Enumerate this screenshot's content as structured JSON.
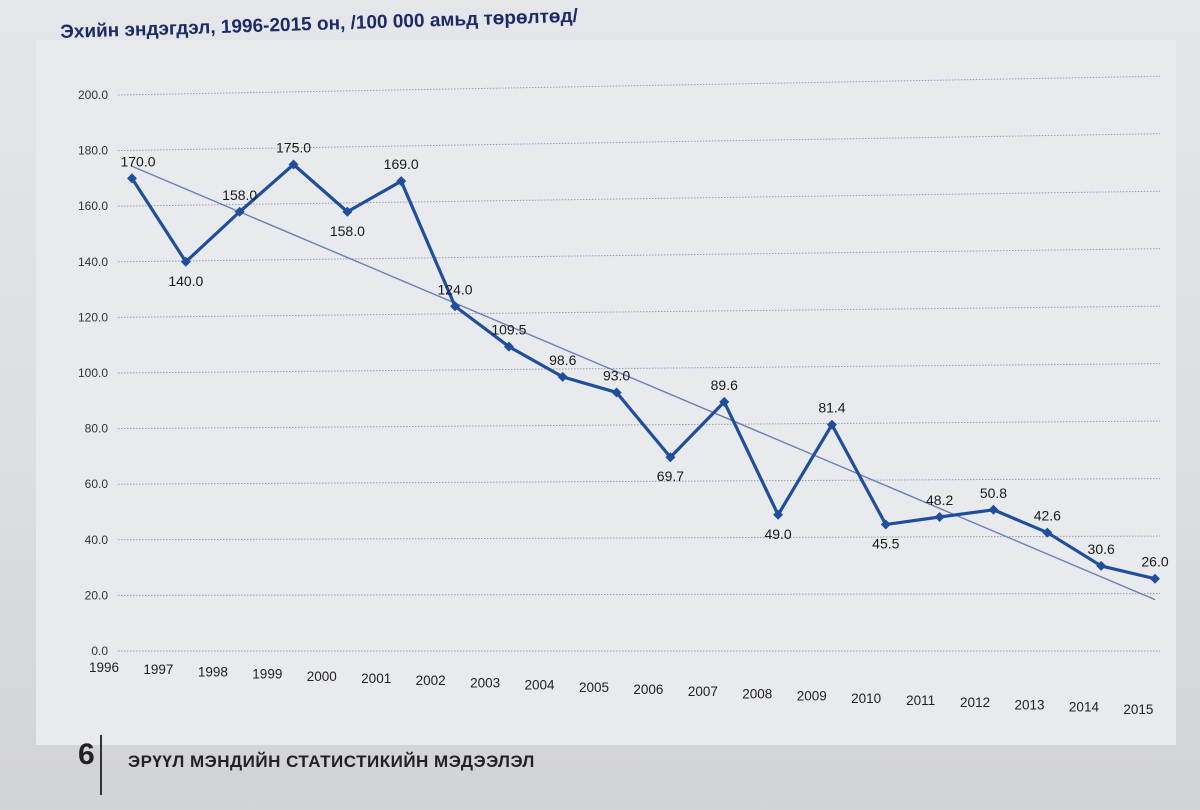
{
  "chart_data": {
    "type": "line",
    "title": "Эхийн эндэгдэл, 1996-2015 он, /100 000 амьд төрөлтөд/",
    "xlabel": "",
    "ylabel": "",
    "ylim": [
      0,
      200
    ],
    "yticks": [
      "0.0",
      "20.0",
      "40.0",
      "60.0",
      "80.0",
      "100.0",
      "120.0",
      "140.0",
      "160.0",
      "180.0",
      "200.0"
    ],
    "categories": [
      "1996",
      "1997",
      "1998",
      "1999",
      "2000",
      "2001",
      "2002",
      "2003",
      "2004",
      "2005",
      "2006",
      "2007",
      "2008",
      "2009",
      "2010",
      "2011",
      "2012",
      "2013",
      "2014",
      "2015"
    ],
    "series": [
      {
        "values": [
          170.0,
          140.0,
          158.0,
          175.0,
          158.0,
          169.0,
          124.0,
          109.5,
          98.6,
          93.0,
          69.7,
          89.6,
          49.0,
          81.4,
          45.5,
          48.2,
          50.8,
          42.6,
          30.6,
          26.0
        ],
        "labels": [
          "170.0",
          "140.0",
          "158.0",
          "175.0",
          "158.0",
          "169.0",
          "124.0",
          "109.5",
          "98.6",
          "93.0",
          "69.7",
          "89.6",
          "49.0",
          "81.4",
          "45.5",
          "48.2",
          "50.8",
          "42.6",
          "30.6",
          "26.0"
        ]
      }
    ],
    "trendline": true,
    "grid": true,
    "legend": "none",
    "colors": {
      "series": "#1f4e9c",
      "trend": "#6b7fb5",
      "grid": "#9a9da3"
    }
  },
  "footer": {
    "page_number": "6",
    "text": "ЭРҮҮЛ МЭНДИЙН СТАТИСТИКИЙН МЭДЭЭЛЭЛ"
  }
}
